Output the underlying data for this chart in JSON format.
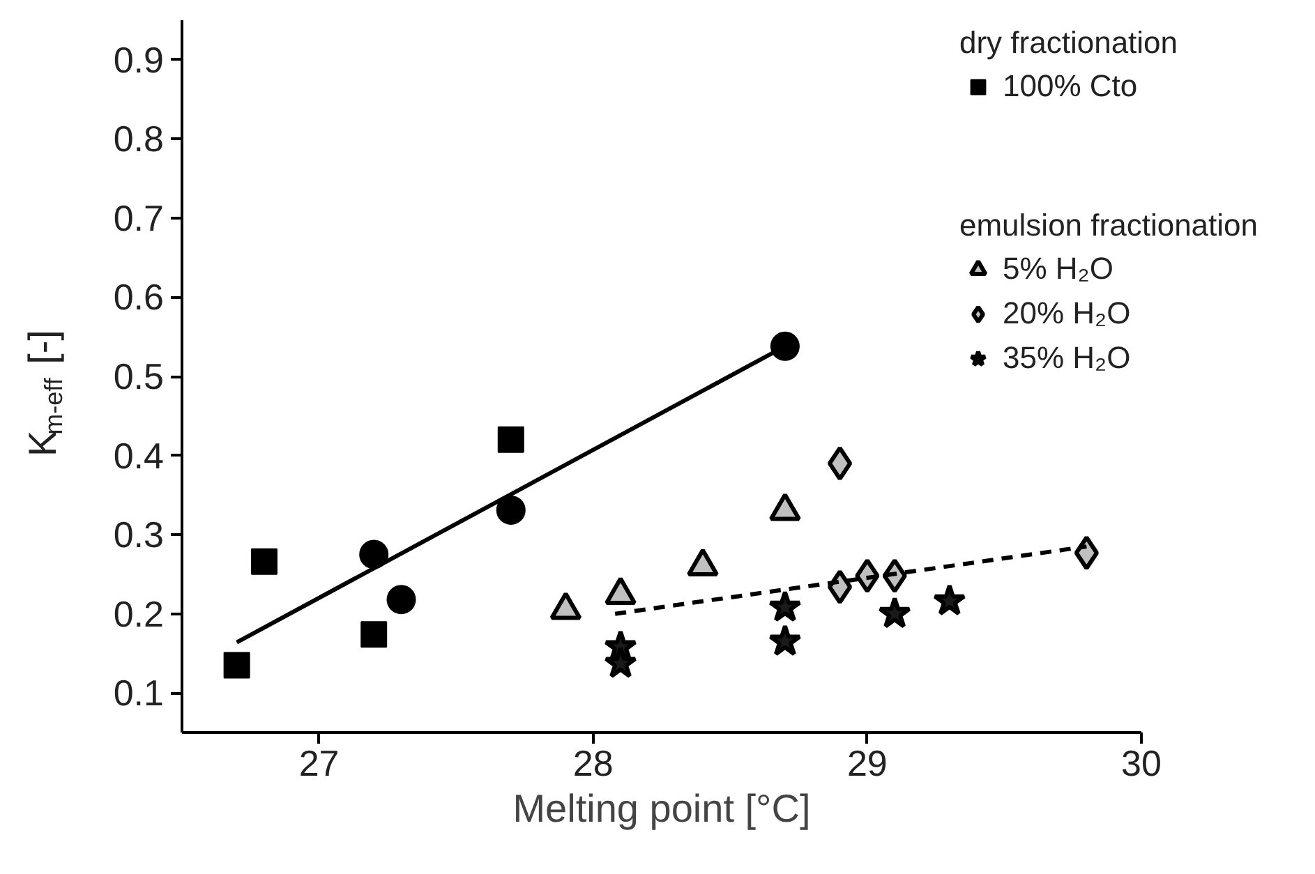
{
  "chart_data": {
    "type": "scatter",
    "xlabel": "Melting point [°C]",
    "ylabel": "K$_{m-eff}$ [-]",
    "xlim": [
      26.5,
      30
    ],
    "ylim": [
      0.05,
      0.95
    ],
    "xticks": [
      27,
      28,
      29,
      30
    ],
    "yticks": [
      0.1,
      0.2,
      0.3,
      0.4,
      0.5,
      0.6,
      0.7,
      0.8,
      0.9
    ],
    "grid": false,
    "legend": "top right",
    "annotations": [
      "dry fractionation",
      "emulsion fractionation"
    ],
    "series": [
      {
        "name": "100% Cto",
        "marker": "square",
        "color": "#000000",
        "x": [
          26.7,
          26.8,
          27.2,
          27.7
        ],
        "values": [
          0.135,
          0.266,
          0.174,
          0.42
        ]
      },
      {
        "marker": "circle",
        "color": "#000000",
        "x": [
          27.2,
          27.3,
          27.7,
          28.7
        ],
        "values": [
          0.275,
          0.218,
          0.331,
          0.538
        ]
      },
      {
        "name": "5% H₂O",
        "marker": "triangle",
        "color": "#c0c0c0",
        "x": [
          27.9,
          28.1,
          28.4,
          28.7
        ],
        "values": [
          0.205,
          0.224,
          0.26,
          0.33
        ]
      },
      {
        "name": "20% H₂O",
        "marker": "diamond",
        "color": "#c0c0c0",
        "x": [
          28.9,
          28.9,
          29.0,
          29.1,
          29.8
        ],
        "values": [
          0.39,
          0.234,
          0.248,
          0.248,
          0.277
        ]
      },
      {
        "name": "35% H₂O",
        "marker": "star",
        "color": "#1a1a1a",
        "x": [
          28.1,
          28.1,
          28.7,
          28.7,
          29.1,
          29.3
        ],
        "values": [
          0.158,
          0.137,
          0.208,
          0.165,
          0.2,
          0.216
        ]
      },
      {
        "type": "line",
        "line_style": "solid",
        "color": "#000000",
        "x": [
          26.7,
          28.7
        ],
        "values": [
          0.164,
          0.538
        ]
      },
      {
        "type": "line",
        "line_style": "dashed",
        "color": "#000000",
        "x": [
          28.08,
          29.8
        ],
        "values": [
          0.2,
          0.285
        ]
      }
    ]
  }
}
